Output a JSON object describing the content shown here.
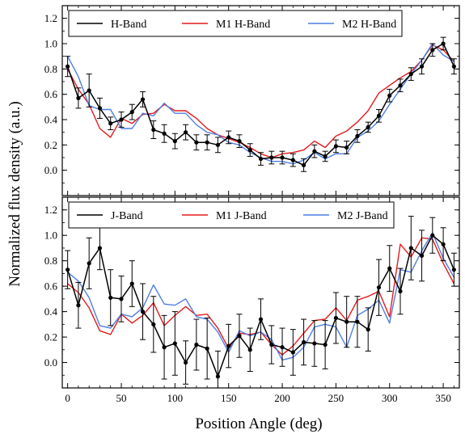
{
  "figure": {
    "ylabel": "Normalized flux density (a.u.)",
    "xlabel": "Position Angle (deg)"
  },
  "colors": {
    "data": "#000000",
    "m1": "#e31a1c",
    "m2": "#4f7fe0"
  },
  "chart_data": [
    {
      "type": "line",
      "panel": "top",
      "xlim": [
        -5,
        365
      ],
      "ylim": [
        -0.2,
        1.3
      ],
      "yticks": [
        "0.0",
        "0.2",
        "0.4",
        "0.6",
        "0.8",
        "1.0",
        "1.2"
      ],
      "ytick_values": [
        0.0,
        0.2,
        0.4,
        0.6,
        0.8,
        1.0,
        1.2
      ],
      "legend": {
        "placement": "top",
        "entries": [
          "H-Band",
          "M1 H-Band",
          "M2 H-Band"
        ]
      },
      "x": [
        0,
        10,
        20,
        30,
        40,
        50,
        60,
        70,
        80,
        90,
        100,
        110,
        120,
        130,
        140,
        150,
        160,
        170,
        180,
        190,
        200,
        210,
        220,
        230,
        240,
        250,
        260,
        270,
        280,
        290,
        300,
        310,
        320,
        330,
        340,
        350,
        360
      ],
      "series": [
        {
          "name": "H-Band",
          "values": [
            0.82,
            0.57,
            0.63,
            0.49,
            0.37,
            0.4,
            0.46,
            0.56,
            0.32,
            0.29,
            0.23,
            0.3,
            0.22,
            0.22,
            0.2,
            0.26,
            0.23,
            0.16,
            0.09,
            0.1,
            0.1,
            0.08,
            0.04,
            0.15,
            0.11,
            0.19,
            0.18,
            0.27,
            0.34,
            0.43,
            0.59,
            0.67,
            0.76,
            0.82,
            0.95,
            1.0,
            0.82
          ],
          "errors": [
            0.08,
            0.08,
            0.13,
            0.08,
            0.05,
            0.06,
            0.06,
            0.06,
            0.07,
            0.07,
            0.06,
            0.06,
            0.06,
            0.06,
            0.06,
            0.05,
            0.05,
            0.05,
            0.05,
            0.05,
            0.05,
            0.05,
            0.05,
            0.05,
            0.04,
            0.05,
            0.05,
            0.05,
            0.04,
            0.05,
            0.05,
            0.05,
            0.05,
            0.06,
            0.05,
            0.05,
            0.06
          ]
        },
        {
          "name": "M1 H-Band",
          "values": [
            0.8,
            0.64,
            0.52,
            0.33,
            0.26,
            0.41,
            0.37,
            0.44,
            0.45,
            0.52,
            0.47,
            0.47,
            0.41,
            0.33,
            0.28,
            0.25,
            0.22,
            0.18,
            0.13,
            0.1,
            0.13,
            0.14,
            0.16,
            0.23,
            0.18,
            0.27,
            0.31,
            0.38,
            0.47,
            0.61,
            0.67,
            0.73,
            0.78,
            0.87,
            0.99,
            0.95,
            0.86
          ]
        },
        {
          "name": "M2 H-Band",
          "values": [
            0.9,
            0.74,
            0.51,
            0.48,
            0.48,
            0.33,
            0.33,
            0.45,
            0.43,
            0.53,
            0.45,
            0.45,
            0.36,
            0.3,
            0.28,
            0.22,
            0.2,
            0.14,
            0.1,
            0.07,
            0.07,
            0.05,
            0.08,
            0.14,
            0.09,
            0.13,
            0.13,
            0.26,
            0.31,
            0.39,
            0.52,
            0.64,
            0.76,
            0.87,
            1.0,
            0.91,
            0.86
          ]
        }
      ]
    },
    {
      "type": "line",
      "panel": "bottom",
      "xlim": [
        -5,
        365
      ],
      "ylim": [
        -0.2,
        1.3
      ],
      "yticks": [
        "0.0",
        "0.2",
        "0.4",
        "0.6",
        "0.8",
        "1.0",
        "1.2"
      ],
      "ytick_values": [
        0.0,
        0.2,
        0.4,
        0.6,
        0.8,
        1.0,
        1.2
      ],
      "xticks": [
        "0",
        "50",
        "100",
        "150",
        "200",
        "250",
        "300",
        "350"
      ],
      "xtick_values": [
        0,
        50,
        100,
        150,
        200,
        250,
        300,
        350
      ],
      "legend": {
        "placement": "top",
        "entries": [
          "J-Band",
          "M1 J-Band",
          "M2 J-Band"
        ]
      },
      "x": [
        0,
        10,
        20,
        30,
        40,
        50,
        60,
        70,
        80,
        90,
        100,
        110,
        120,
        130,
        140,
        150,
        160,
        170,
        180,
        190,
        200,
        210,
        220,
        230,
        240,
        250,
        260,
        270,
        280,
        290,
        300,
        310,
        320,
        330,
        340,
        350,
        360
      ],
      "series": [
        {
          "name": "J-Band",
          "values": [
            0.73,
            0.45,
            0.78,
            0.9,
            0.51,
            0.5,
            0.62,
            0.4,
            0.3,
            0.12,
            0.15,
            0.0,
            0.14,
            0.11,
            -0.11,
            0.13,
            0.21,
            0.1,
            0.34,
            0.14,
            0.12,
            0.08,
            0.16,
            0.15,
            0.14,
            0.35,
            0.32,
            0.32,
            0.26,
            0.59,
            0.74,
            0.56,
            0.9,
            0.84,
            1.0,
            0.93,
            0.73
          ],
          "errors": [
            0.15,
            0.18,
            0.2,
            0.17,
            0.22,
            0.18,
            0.18,
            0.22,
            0.22,
            0.25,
            0.25,
            0.17,
            0.2,
            0.24,
            0.2,
            0.17,
            0.17,
            0.17,
            0.16,
            0.15,
            0.15,
            0.18,
            0.18,
            0.18,
            0.19,
            0.2,
            0.2,
            0.2,
            0.17,
            0.22,
            0.18,
            0.18,
            0.25,
            0.2,
            0.14,
            0.13,
            0.13
          ]
        },
        {
          "name": "M1 J-Band",
          "values": [
            0.62,
            0.55,
            0.43,
            0.25,
            0.22,
            0.38,
            0.31,
            0.37,
            0.47,
            0.29,
            0.37,
            0.44,
            0.37,
            0.38,
            0.27,
            0.11,
            0.23,
            0.22,
            0.24,
            0.14,
            0.06,
            0.13,
            0.23,
            0.33,
            0.34,
            0.43,
            0.33,
            0.49,
            0.52,
            0.56,
            0.36,
            0.93,
            0.83,
            0.98,
            0.97,
            0.78,
            0.62
          ]
        },
        {
          "name": "M2 J-Band",
          "values": [
            0.71,
            0.64,
            0.51,
            0.29,
            0.27,
            0.38,
            0.36,
            0.43,
            0.61,
            0.46,
            0.45,
            0.5,
            0.36,
            0.34,
            0.24,
            0.08,
            0.25,
            0.21,
            0.24,
            0.18,
            0.02,
            0.04,
            0.12,
            0.28,
            0.3,
            0.28,
            0.12,
            0.37,
            0.42,
            0.49,
            0.31,
            0.73,
            0.71,
            0.88,
            1.02,
            0.82,
            0.67
          ]
        }
      ]
    }
  ]
}
